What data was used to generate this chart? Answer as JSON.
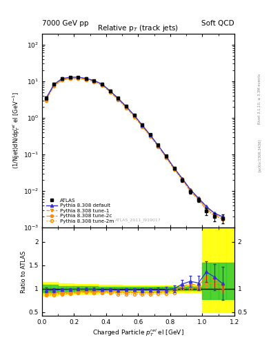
{
  "title_main": "Relative p$_{T}$ (track jets)",
  "header_left": "7000 GeV pp",
  "header_right": "Soft QCD",
  "ylabel_main": "(1/Njet)dN/dp$^{rel}_{T}$ el [GeV$^{-1}$]",
  "ylabel_ratio": "Ratio to ATLAS",
  "xlabel": "Charged Particle $p^{rel}_{T}$ el [GeV]",
  "watermark": "ATLAS_2011_I919017",
  "right_label": "Rivet 3.1.10, ≥ 3.3M events",
  "right_label2": "[arXiv:1306.3436]",
  "xlim": [
    0.0,
    1.2
  ],
  "ylim_main": [
    0.001,
    200
  ],
  "ylim_ratio": [
    0.42,
    2.3
  ],
  "atlas_x": [
    0.025,
    0.075,
    0.125,
    0.175,
    0.225,
    0.275,
    0.325,
    0.375,
    0.425,
    0.475,
    0.525,
    0.575,
    0.625,
    0.675,
    0.725,
    0.775,
    0.825,
    0.875,
    0.925,
    0.975,
    1.025,
    1.075,
    1.125
  ],
  "atlas_y": [
    3.5,
    8.5,
    12.0,
    13.0,
    13.0,
    12.0,
    10.5,
    8.5,
    5.5,
    3.5,
    2.1,
    1.2,
    0.65,
    0.35,
    0.18,
    0.09,
    0.042,
    0.02,
    0.0095,
    0.0058,
    0.0028,
    0.002,
    0.0018
  ],
  "atlas_yerr": [
    0.3,
    0.5,
    0.6,
    0.6,
    0.6,
    0.6,
    0.5,
    0.4,
    0.3,
    0.2,
    0.12,
    0.07,
    0.04,
    0.02,
    0.012,
    0.006,
    0.003,
    0.002,
    0.001,
    0.0008,
    0.0006,
    0.0005,
    0.0005
  ],
  "pythia_default_y": [
    3.4,
    8.2,
    11.8,
    12.8,
    12.9,
    11.9,
    10.4,
    8.3,
    5.4,
    3.4,
    2.05,
    1.18,
    0.63,
    0.34,
    0.175,
    0.088,
    0.042,
    0.022,
    0.011,
    0.0065,
    0.0038,
    0.0025,
    0.002
  ],
  "tune1_y": [
    3.1,
    7.6,
    10.8,
    11.8,
    12.0,
    11.2,
    9.8,
    7.9,
    5.1,
    3.2,
    1.92,
    1.1,
    0.59,
    0.32,
    0.165,
    0.083,
    0.04,
    0.021,
    0.01,
    0.006,
    0.0032,
    0.0022,
    0.0018
  ],
  "tune2c_y": [
    3.2,
    7.8,
    11.0,
    12.0,
    12.2,
    11.4,
    9.9,
    8.0,
    5.2,
    3.3,
    1.95,
    1.12,
    0.6,
    0.325,
    0.168,
    0.085,
    0.041,
    0.021,
    0.0105,
    0.0062,
    0.0035,
    0.0024,
    0.0019
  ],
  "tune2m_y": [
    3.0,
    7.4,
    10.6,
    11.6,
    11.8,
    11.0,
    9.6,
    7.7,
    5.0,
    3.1,
    1.85,
    1.06,
    0.57,
    0.31,
    0.16,
    0.08,
    0.038,
    0.02,
    0.0095,
    0.0058,
    0.003,
    0.0021,
    0.0017
  ],
  "ratio_default_y": [
    0.97,
    0.965,
    0.983,
    0.985,
    0.992,
    0.992,
    0.99,
    0.976,
    0.982,
    0.971,
    0.976,
    0.983,
    0.969,
    0.971,
    0.972,
    0.978,
    1.0,
    1.1,
    1.158,
    1.121,
    1.357,
    1.25,
    1.111
  ],
  "ratio_default_yerr": [
    0.05,
    0.04,
    0.035,
    0.03,
    0.03,
    0.03,
    0.03,
    0.03,
    0.03,
    0.03,
    0.03,
    0.03,
    0.04,
    0.04,
    0.05,
    0.06,
    0.07,
    0.09,
    0.12,
    0.15,
    0.22,
    0.28,
    0.35
  ],
  "ratio_tune1_y": [
    0.886,
    0.894,
    0.9,
    0.908,
    0.923,
    0.933,
    0.933,
    0.929,
    0.927,
    0.914,
    0.914,
    0.917,
    0.908,
    0.914,
    0.917,
    0.922,
    0.952,
    1.05,
    1.053,
    1.034,
    1.143,
    1.1,
    1.0
  ],
  "ratio_tune2c_y": [
    0.914,
    0.918,
    0.917,
    0.923,
    0.938,
    0.95,
    0.943,
    0.941,
    0.945,
    0.943,
    0.929,
    0.933,
    0.923,
    0.929,
    0.933,
    0.944,
    0.976,
    1.05,
    1.105,
    1.069,
    1.25,
    1.2,
    1.056
  ],
  "ratio_tune2m_y": [
    0.857,
    0.871,
    0.883,
    0.892,
    0.908,
    0.917,
    0.914,
    0.906,
    0.909,
    0.886,
    0.881,
    0.883,
    0.877,
    0.886,
    0.889,
    0.889,
    0.905,
    1.0,
    1.0,
    1.0,
    1.071,
    1.05,
    0.944
  ],
  "band_edges": [
    0.0,
    0.05,
    0.1,
    0.15,
    0.2,
    0.25,
    0.3,
    0.35,
    0.4,
    0.45,
    0.5,
    0.55,
    0.6,
    0.65,
    0.7,
    0.75,
    0.8,
    0.85,
    0.9,
    0.95,
    1.0,
    1.05,
    1.1,
    1.15,
    1.2
  ],
  "yellow_low": [
    0.85,
    0.85,
    0.88,
    0.88,
    0.9,
    0.9,
    0.9,
    0.92,
    0.92,
    0.92,
    0.93,
    0.93,
    0.93,
    0.93,
    0.93,
    0.93,
    0.93,
    0.93,
    0.93,
    0.93,
    0.5,
    0.5,
    0.5,
    0.5
  ],
  "yellow_high": [
    1.15,
    1.15,
    1.12,
    1.12,
    1.1,
    1.1,
    1.1,
    1.08,
    1.08,
    1.08,
    1.07,
    1.07,
    1.07,
    1.07,
    1.07,
    1.07,
    1.07,
    1.07,
    1.07,
    1.07,
    2.3,
    2.3,
    2.3,
    2.3
  ],
  "green_low": [
    0.92,
    0.92,
    0.94,
    0.94,
    0.95,
    0.95,
    0.95,
    0.96,
    0.96,
    0.96,
    0.965,
    0.965,
    0.965,
    0.965,
    0.965,
    0.965,
    0.965,
    0.965,
    0.965,
    0.965,
    0.78,
    0.78,
    0.78,
    0.78
  ],
  "green_high": [
    1.08,
    1.08,
    1.06,
    1.06,
    1.05,
    1.05,
    1.05,
    1.04,
    1.04,
    1.04,
    1.035,
    1.035,
    1.035,
    1.035,
    1.035,
    1.035,
    1.035,
    1.035,
    1.035,
    1.035,
    1.55,
    1.55,
    1.55,
    1.55
  ],
  "color_atlas": "#000000",
  "color_default": "#3333cc",
  "color_tune": "#ff8c00",
  "color_yellow": "#ffff00",
  "color_green": "#33cc33",
  "bg_color": "#ffffff"
}
